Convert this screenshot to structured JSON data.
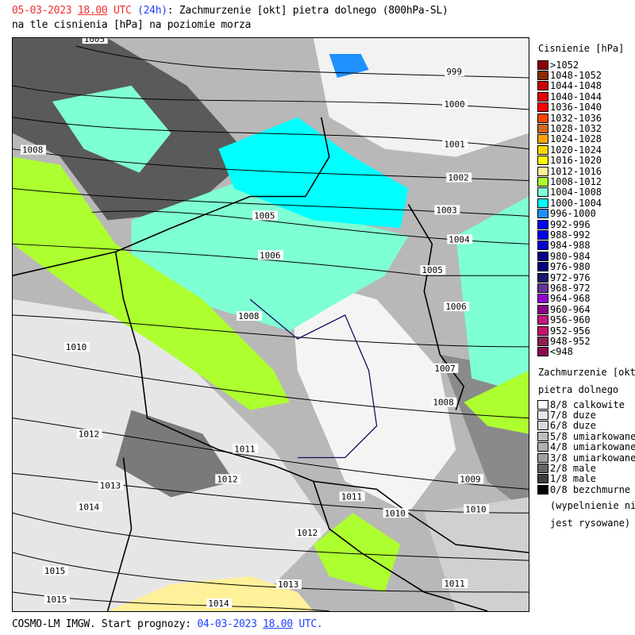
{
  "header": {
    "date": "05-03-2023",
    "hour": "18.00",
    "utc": "UTC",
    "lead": "(24h)",
    "title_rest": ": Zachmurzenie [okt] pietra dolnego (800hPa-SL)",
    "line2": "na tle cisnienia [hPa] na poziomie morza"
  },
  "footer": {
    "prefix": "COSMO-LM IMGW. Start prognozy:",
    "date": "04-03-2023",
    "hour": "18.00",
    "utc": "UTC."
  },
  "pressure_legend": {
    "title": "Cisnienie [hPa]",
    "items": [
      {
        "label": ">1052",
        "color": "#8b0000"
      },
      {
        "label": "1048-1052",
        "color": "#8b2a00"
      },
      {
        "label": "1044-1048",
        "color": "#c80000"
      },
      {
        "label": "1040-1044",
        "color": "#e80000"
      },
      {
        "label": "1036-1040",
        "color": "#ff0000"
      },
      {
        "label": "1032-1036",
        "color": "#ff4500"
      },
      {
        "label": "1028-1032",
        "color": "#d2691e"
      },
      {
        "label": "1024-1028",
        "color": "#ffa500"
      },
      {
        "label": "1020-1024",
        "color": "#ffd700"
      },
      {
        "label": "1016-1020",
        "color": "#ffff00"
      },
      {
        "label": "1012-1016",
        "color": "#fff09a"
      },
      {
        "label": "1008-1012",
        "color": "#adff2f"
      },
      {
        "label": "1004-1008",
        "color": "#7fffd4"
      },
      {
        "label": "1000-1004",
        "color": "#00ffff"
      },
      {
        "label": "996-1000",
        "color": "#1e90ff"
      },
      {
        "label": "992-996",
        "color": "#0000ff"
      },
      {
        "label": "988-992",
        "color": "#0000ee"
      },
      {
        "label": "984-988",
        "color": "#0000cd"
      },
      {
        "label": "980-984",
        "color": "#00008b"
      },
      {
        "label": "976-980",
        "color": "#000080"
      },
      {
        "label": "972-976",
        "color": "#191970"
      },
      {
        "label": "968-972",
        "color": "#663399"
      },
      {
        "label": "964-968",
        "color": "#9400d3"
      },
      {
        "label": "960-964",
        "color": "#8b008b"
      },
      {
        "label": "956-960",
        "color": "#c71585"
      },
      {
        "label": "952-956",
        "color": "#c81070"
      },
      {
        "label": "948-952",
        "color": "#8b2252"
      },
      {
        "label": "<948",
        "color": "#8b0a50"
      }
    ]
  },
  "cloud_legend": {
    "title1": "Zachmurzenie [okt]",
    "title2": "pietra dolnego",
    "items": [
      {
        "label": "8/8 calkowite",
        "color": "#ffffff"
      },
      {
        "label": "7/8 duze",
        "color": "#e6e6e6"
      },
      {
        "label": "6/8 duze",
        "color": "#d8d8d8"
      },
      {
        "label": "5/8 umiarkowane",
        "color": "#bebebe"
      },
      {
        "label": "4/8 umiarkowane",
        "color": "#b0b0b0"
      },
      {
        "label": "3/8 umiarkowane",
        "color": "#a0a0a0"
      },
      {
        "label": "2/8 male",
        "color": "#646464"
      },
      {
        "label": "1/8 male",
        "color": "#3c3c3c"
      },
      {
        "label": "0/8 bezchmurne",
        "color": "#000000"
      }
    ],
    "note1": "(wypelnienie nie",
    "note2": "jest rysowane)"
  },
  "isobar_labels": [
    "1005",
    "999",
    "1000",
    "1001",
    "1002",
    "1003",
    "1004",
    "1005",
    "1006",
    "1005",
    "1006",
    "1008",
    "1008",
    "1010",
    "1007",
    "1008",
    "1012",
    "1011",
    "1012",
    "1013",
    "1009",
    "1011",
    "1010",
    "1010",
    "1014",
    "1012",
    "1015",
    "1013",
    "1011",
    "1015",
    "1014"
  ]
}
